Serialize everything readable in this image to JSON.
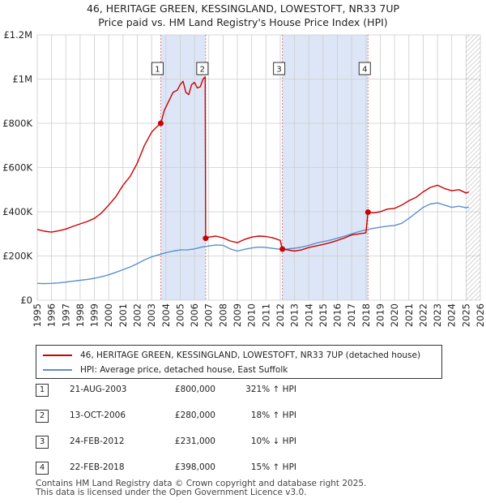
{
  "title": "46, HERITAGE GREEN, KESSINGLAND, LOWESTOFT, NR33 7UP",
  "subtitle": "Price paid vs. HM Land Registry's House Price Index (HPI)",
  "colors": {
    "property": "#cc0000",
    "hpi": "#5b8fcc",
    "band": "#dde6f7",
    "marker_line": "#e08080",
    "grid": "#cccccc"
  },
  "chart_data": {
    "type": "line",
    "title": "46, HERITAGE GREEN, KESSINGLAND, LOWESTOFT, NR33 7UP",
    "subtitle": "Price paid vs. HM Land Registry's House Price Index (HPI)",
    "xlabel": "",
    "ylabel": "",
    "xlim": [
      1995,
      2026
    ],
    "ylim": [
      0,
      1200000
    ],
    "y_ticks": [
      {
        "value": 0,
        "label": "£0"
      },
      {
        "value": 200000,
        "label": "£200K"
      },
      {
        "value": 400000,
        "label": "£400K"
      },
      {
        "value": 600000,
        "label": "£600K"
      },
      {
        "value": 800000,
        "label": "£800K"
      },
      {
        "value": 1000000,
        "label": "£1M"
      },
      {
        "value": 1200000,
        "label": "£1.2M"
      }
    ],
    "x_ticks": [
      "1995",
      "1996",
      "1997",
      "1998",
      "1999",
      "2000",
      "2001",
      "2002",
      "2003",
      "2004",
      "2005",
      "2006",
      "2007",
      "2008",
      "2009",
      "2010",
      "2011",
      "2012",
      "2013",
      "2014",
      "2015",
      "2016",
      "2017",
      "2018",
      "2019",
      "2020",
      "2021",
      "2022",
      "2023",
      "2024",
      "2025",
      "2026"
    ],
    "grid": true,
    "shaded_ranges": [
      [
        2003.64,
        2006.78
      ],
      [
        2012.15,
        2018.14
      ]
    ],
    "hatched_range": [
      2025.0,
      2026.0
    ],
    "series": [
      {
        "name": "46, HERITAGE GREEN, KESSINGLAND, LOWESTOFT, NR33 7UP (detached house)",
        "color": "#cc0000",
        "x": [
          1995.0,
          1995.5,
          1996.0,
          1996.5,
          1997.0,
          1997.5,
          1998.0,
          1998.5,
          1999.0,
          1999.5,
          2000.0,
          2000.5,
          2001.0,
          2001.5,
          2002.0,
          2002.5,
          2003.0,
          2003.3,
          2003.64,
          2003.9,
          2004.2,
          2004.5,
          2004.8,
          2005.0,
          2005.2,
          2005.4,
          2005.6,
          2005.8,
          2006.0,
          2006.2,
          2006.4,
          2006.6,
          2006.75,
          2006.78,
          2007.0,
          2007.5,
          2008.0,
          2008.5,
          2009.0,
          2009.5,
          2010.0,
          2010.5,
          2011.0,
          2011.5,
          2012.0,
          2012.15,
          2012.5,
          2013.0,
          2013.5,
          2014.0,
          2014.5,
          2015.0,
          2015.5,
          2016.0,
          2016.5,
          2017.0,
          2017.5,
          2018.0,
          2018.14,
          2018.5,
          2019.0,
          2019.5,
          2020.0,
          2020.5,
          2021.0,
          2021.5,
          2022.0,
          2022.5,
          2023.0,
          2023.5,
          2024.0,
          2024.5,
          2025.0,
          2025.2
        ],
        "values": [
          320000,
          312000,
          308000,
          314000,
          322000,
          334000,
          345000,
          356000,
          370000,
          395000,
          430000,
          468000,
          520000,
          560000,
          620000,
          700000,
          760000,
          780000,
          800000,
          860000,
          900000,
          940000,
          950000,
          975000,
          990000,
          940000,
          930000,
          975000,
          985000,
          960000,
          965000,
          1000000,
          1010000,
          280000,
          285000,
          290000,
          282000,
          268000,
          260000,
          275000,
          285000,
          290000,
          288000,
          282000,
          270000,
          231000,
          228000,
          222000,
          228000,
          238000,
          245000,
          252000,
          260000,
          270000,
          282000,
          295000,
          300000,
          305000,
          398000,
          395000,
          400000,
          412000,
          415000,
          430000,
          450000,
          465000,
          490000,
          510000,
          520000,
          505000,
          495000,
          500000,
          485000,
          490000
        ]
      },
      {
        "name": "HPI: Average price, detached house, East Suffolk",
        "color": "#5b8fcc",
        "x": [
          1995.0,
          1995.5,
          1996.0,
          1996.5,
          1997.0,
          1997.5,
          1998.0,
          1998.5,
          1999.0,
          1999.5,
          2000.0,
          2000.5,
          2001.0,
          2001.5,
          2002.0,
          2002.5,
          2003.0,
          2003.5,
          2004.0,
          2004.5,
          2005.0,
          2005.5,
          2006.0,
          2006.5,
          2007.0,
          2007.5,
          2008.0,
          2008.5,
          2009.0,
          2009.5,
          2010.0,
          2010.5,
          2011.0,
          2011.5,
          2012.0,
          2012.5,
          2013.0,
          2013.5,
          2014.0,
          2014.5,
          2015.0,
          2015.5,
          2016.0,
          2016.5,
          2017.0,
          2017.5,
          2018.0,
          2018.5,
          2019.0,
          2019.5,
          2020.0,
          2020.5,
          2021.0,
          2021.5,
          2022.0,
          2022.5,
          2023.0,
          2023.5,
          2024.0,
          2024.5,
          2025.0,
          2025.2
        ],
        "values": [
          76000,
          75000,
          76000,
          78000,
          82000,
          86000,
          90000,
          94000,
          99000,
          106000,
          115000,
          126000,
          138000,
          150000,
          165000,
          182000,
          196000,
          205000,
          215000,
          222000,
          227000,
          228000,
          232000,
          240000,
          245000,
          250000,
          248000,
          232000,
          222000,
          230000,
          236000,
          240000,
          238000,
          234000,
          230000,
          232000,
          235000,
          240000,
          248000,
          258000,
          265000,
          272000,
          280000,
          290000,
          300000,
          310000,
          318000,
          325000,
          330000,
          335000,
          338000,
          348000,
          370000,
          395000,
          420000,
          435000,
          440000,
          430000,
          420000,
          425000,
          418000,
          420000
        ]
      }
    ],
    "markers": [
      {
        "id": "1",
        "x": 2003.64,
        "price": 800000
      },
      {
        "id": "2",
        "x": 2006.78,
        "price": 280000
      },
      {
        "id": "3",
        "x": 2012.15,
        "price": 231000
      },
      {
        "id": "4",
        "x": 2018.14,
        "price": 398000
      }
    ]
  },
  "legend": {
    "items": [
      {
        "label": "46, HERITAGE GREEN, KESSINGLAND, LOWESTOFT, NR33 7UP (detached house)",
        "color": "#cc0000"
      },
      {
        "label": "HPI: Average price, detached house, East Suffolk",
        "color": "#5b8fcc"
      }
    ]
  },
  "transactions": [
    {
      "num": "1",
      "date": "21-AUG-2003",
      "price": "£800,000",
      "diff": "321% ↑ HPI"
    },
    {
      "num": "2",
      "date": "13-OCT-2006",
      "price": "£280,000",
      "diff": "18% ↑ HPI"
    },
    {
      "num": "3",
      "date": "24-FEB-2012",
      "price": "£231,000",
      "diff": "10% ↓ HPI"
    },
    {
      "num": "4",
      "date": "22-FEB-2018",
      "price": "£398,000",
      "diff": "15% ↑ HPI"
    }
  ],
  "footer": {
    "line1": "Contains HM Land Registry data © Crown copyright and database right 2025.",
    "line2": "This data is licensed under the Open Government Licence v3.0."
  }
}
